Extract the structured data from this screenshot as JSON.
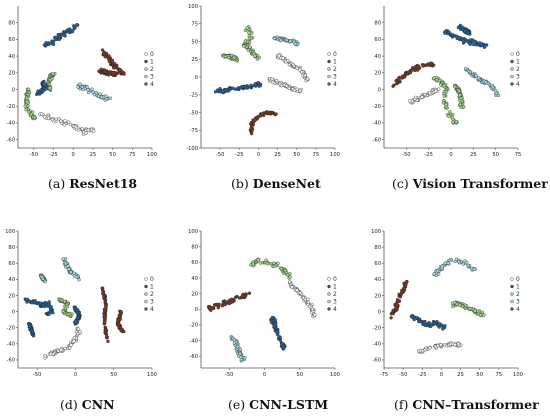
{
  "colors": {
    "class_0": "#f4f4f4",
    "class_1": "#7b3b2a",
    "class_2": "#a8d890",
    "class_3": "#a9dde6",
    "class_4": "#2b6494",
    "edge": "#222222"
  },
  "chart_data": [
    {
      "type": "scatter",
      "caption_tag": "(a)",
      "caption_name": "ResNet18",
      "xlim": [
        -70,
        100
      ],
      "ylim": [
        -70,
        100
      ],
      "xticks": [
        -50,
        -25,
        0,
        25,
        50,
        75,
        100
      ],
      "yticks": [
        -60,
        -40,
        -20,
        0,
        20,
        40,
        60,
        80
      ],
      "legend": [
        "0",
        "1",
        "2",
        "3",
        "4"
      ],
      "legend_position": "right",
      "clusters": [
        {
          "class": 4,
          "path": [
            [
              -35,
              52
            ],
            [
              -25,
              58
            ],
            [
              -15,
              65
            ],
            [
              -5,
              70
            ],
            [
              5,
              76
            ]
          ],
          "spread": 4
        },
        {
          "class": 1,
          "path": [
            [
              35,
              48
            ],
            [
              45,
              38
            ],
            [
              50,
              30
            ],
            [
              58,
              24
            ],
            [
              65,
              18
            ]
          ],
          "spread": 3
        },
        {
          "class": 1,
          "path": [
            [
              35,
              22
            ],
            [
              45,
              20
            ],
            [
              55,
              18
            ]
          ],
          "spread": 3
        },
        {
          "class": 2,
          "path": [
            [
              -25,
              20
            ],
            [
              -32,
              10
            ],
            [
              -30,
              0
            ]
          ],
          "spread": 3
        },
        {
          "class": 4,
          "path": [
            [
              -40,
              10
            ],
            [
              -35,
              2
            ],
            [
              -45,
              -5
            ]
          ],
          "spread": 3
        },
        {
          "class": 2,
          "path": [
            [
              -55,
              0
            ],
            [
              -60,
              -10
            ],
            [
              -58,
              -25
            ],
            [
              -48,
              -35
            ]
          ],
          "spread": 4
        },
        {
          "class": 3,
          "path": [
            [
              5,
              5
            ],
            [
              15,
              2
            ],
            [
              25,
              -3
            ],
            [
              35,
              -8
            ],
            [
              45,
              -12
            ]
          ],
          "spread": 4
        },
        {
          "class": 0,
          "path": [
            [
              -40,
              -30
            ],
            [
              -25,
              -35
            ],
            [
              -10,
              -40
            ],
            [
              5,
              -45
            ],
            [
              15,
              -50
            ],
            [
              25,
              -48
            ]
          ],
          "spread": 4
        }
      ]
    },
    {
      "type": "scatter",
      "caption_tag": "(b)",
      "caption_name": "DenseNet",
      "xlim": [
        -75,
        100
      ],
      "ylim": [
        -100,
        100
      ],
      "xticks": [
        -50,
        -25,
        0,
        25,
        50,
        75,
        100
      ],
      "yticks": [
        -100,
        -75,
        -50,
        -25,
        0,
        25,
        50,
        75,
        100
      ],
      "legend": [
        "0",
        "1",
        "2",
        "3",
        "4"
      ],
      "legend_position": "right",
      "clusters": [
        {
          "class": 2,
          "path": [
            [
              -15,
              70
            ],
            [
              -10,
              55
            ],
            [
              -18,
              45
            ],
            [
              -8,
              35
            ],
            [
              0,
              25
            ]
          ],
          "spread": 5
        },
        {
          "class": 2,
          "path": [
            [
              -45,
              30
            ],
            [
              -35,
              28
            ],
            [
              -28,
              25
            ]
          ],
          "spread": 4
        },
        {
          "class": 3,
          "path": [
            [
              20,
              55
            ],
            [
              35,
              52
            ],
            [
              50,
              48
            ]
          ],
          "spread": 3
        },
        {
          "class": 0,
          "path": [
            [
              25,
              30
            ],
            [
              40,
              20
            ],
            [
              55,
              10
            ],
            [
              65,
              -5
            ]
          ],
          "spread": 4
        },
        {
          "class": 0,
          "path": [
            [
              10,
              0
            ],
            [
              25,
              -8
            ],
            [
              40,
              -15
            ],
            [
              55,
              -20
            ]
          ],
          "spread": 4
        },
        {
          "class": 4,
          "path": [
            [
              -55,
              -20
            ],
            [
              -40,
              -18
            ],
            [
              -25,
              -15
            ],
            [
              -10,
              -12
            ],
            [
              5,
              -10
            ]
          ],
          "spread": 4
        },
        {
          "class": 1,
          "path": [
            [
              -10,
              -80
            ],
            [
              -8,
              -65
            ],
            [
              0,
              -55
            ],
            [
              12,
              -50
            ],
            [
              22,
              -52
            ]
          ],
          "spread": 3
        }
      ]
    },
    {
      "type": "scatter",
      "caption_tag": "(c)",
      "caption_name": "Vision Transformer",
      "xlim": [
        -75,
        75
      ],
      "ylim": [
        -70,
        100
      ],
      "xticks": [
        -50,
        -25,
        0,
        25,
        50,
        75
      ],
      "yticks": [
        -60,
        -40,
        -20,
        0,
        20,
        40,
        60,
        80
      ],
      "legend": [
        "0",
        "1",
        "2",
        "3",
        "4"
      ],
      "legend_position": "right",
      "clusters": [
        {
          "class": 4,
          "path": [
            [
              -5,
              70
            ],
            [
              5,
              62
            ],
            [
              18,
              58
            ],
            [
              30,
              55
            ],
            [
              40,
              52
            ]
          ],
          "spread": 4
        },
        {
          "class": 4,
          "path": [
            [
              10,
              75
            ],
            [
              20,
              68
            ]
          ],
          "spread": 3
        },
        {
          "class": 1,
          "path": [
            [
              -65,
              5
            ],
            [
              -55,
              15
            ],
            [
              -45,
              22
            ],
            [
              -35,
              28
            ],
            [
              -20,
              30
            ]
          ],
          "spread": 4
        },
        {
          "class": 3,
          "path": [
            [
              15,
              25
            ],
            [
              25,
              18
            ],
            [
              35,
              10
            ],
            [
              45,
              5
            ],
            [
              55,
              -10
            ]
          ],
          "spread": 3
        },
        {
          "class": 0,
          "path": [
            [
              -45,
              -15
            ],
            [
              -35,
              -10
            ],
            [
              -25,
              -5
            ],
            [
              -15,
              0
            ]
          ],
          "spread": 3
        },
        {
          "class": 2,
          "path": [
            [
              -20,
              15
            ],
            [
              -10,
              8
            ],
            [
              -5,
              0
            ],
            [
              -8,
              -15
            ],
            [
              -2,
              -30
            ],
            [
              5,
              -40
            ]
          ],
          "spread": 4
        },
        {
          "class": 2,
          "path": [
            [
              5,
              5
            ],
            [
              10,
              -5
            ],
            [
              12,
              -20
            ]
          ],
          "spread": 3
        }
      ]
    },
    {
      "type": "scatter",
      "caption_tag": "(d)",
      "caption_name": "CNN",
      "xlim": [
        -75,
        100
      ],
      "ylim": [
        -70,
        100
      ],
      "xticks": [
        -50,
        0,
        50,
        100
      ],
      "yticks": [
        -60,
        -40,
        -20,
        0,
        20,
        40,
        60,
        80,
        100
      ],
      "legend": [
        "0",
        "1",
        "2",
        "3",
        "4"
      ],
      "legend_position": "right",
      "clusters": [
        {
          "class": 3,
          "path": [
            [
              -15,
              65
            ],
            [
              -10,
              55
            ],
            [
              -5,
              48
            ],
            [
              5,
              42
            ]
          ],
          "spread": 3
        },
        {
          "class": 3,
          "path": [
            [
              -45,
              45
            ],
            [
              -40,
              38
            ]
          ],
          "spread": 2
        },
        {
          "class": 4,
          "path": [
            [
              -65,
              15
            ],
            [
              -55,
              12
            ],
            [
              -45,
              8
            ],
            [
              -35,
              10
            ],
            [
              -30,
              0
            ],
            [
              -40,
              -5
            ]
          ],
          "spread": 4
        },
        {
          "class": 4,
          "path": [
            [
              -60,
              -15
            ],
            [
              -55,
              -30
            ]
          ],
          "spread": 2
        },
        {
          "class": 2,
          "path": [
            [
              -20,
              15
            ],
            [
              -10,
              10
            ],
            [
              -15,
              0
            ],
            [
              -5,
              -5
            ]
          ],
          "spread": 3
        },
        {
          "class": 4,
          "path": [
            [
              0,
              5
            ],
            [
              5,
              -5
            ],
            [
              0,
              -15
            ]
          ],
          "spread": 3
        },
        {
          "class": 0,
          "path": [
            [
              -40,
              -55
            ],
            [
              -25,
              -50
            ],
            [
              -10,
              -45
            ],
            [
              0,
              -35
            ],
            [
              5,
              -20
            ]
          ],
          "spread": 4
        },
        {
          "class": 1,
          "path": [
            [
              35,
              30
            ],
            [
              40,
              10
            ],
            [
              38,
              -10
            ],
            [
              42,
              -40
            ]
          ],
          "spread": 2
        },
        {
          "class": 1,
          "path": [
            [
              60,
              0
            ],
            [
              55,
              -15
            ],
            [
              62,
              -25
            ]
          ],
          "spread": 2
        }
      ]
    },
    {
      "type": "scatter",
      "caption_tag": "(e)",
      "caption_name": "CNN-LSTM",
      "xlim": [
        -90,
        100
      ],
      "ylim": [
        -75,
        100
      ],
      "xticks": [
        -50,
        0,
        50,
        100
      ],
      "yticks": [
        -60,
        -40,
        -20,
        0,
        20,
        40,
        60,
        80,
        100
      ],
      "legend": [
        "0",
        "1",
        "2",
        "3",
        "4"
      ],
      "legend_position": "right",
      "clusters": [
        {
          "class": 2,
          "path": [
            [
              -20,
              55
            ],
            [
              -10,
              62
            ],
            [
              5,
              60
            ],
            [
              20,
              55
            ],
            [
              30,
              48
            ],
            [
              38,
              40
            ]
          ],
          "spread": 4
        },
        {
          "class": 1,
          "path": [
            [
              -80,
              0
            ],
            [
              -65,
              5
            ],
            [
              -50,
              10
            ],
            [
              -35,
              15
            ],
            [
              -20,
              20
            ]
          ],
          "spread": 4
        },
        {
          "class": 0,
          "path": [
            [
              35,
              35
            ],
            [
              45,
              25
            ],
            [
              55,
              15
            ],
            [
              65,
              5
            ],
            [
              72,
              -10
            ]
          ],
          "spread": 4
        },
        {
          "class": 4,
          "path": [
            [
              10,
              -10
            ],
            [
              15,
              -20
            ],
            [
              20,
              -35
            ],
            [
              28,
              -50
            ]
          ],
          "spread": 4
        },
        {
          "class": 3,
          "path": [
            [
              -45,
              -35
            ],
            [
              -40,
              -45
            ],
            [
              -35,
              -55
            ],
            [
              -30,
              -65
            ]
          ],
          "spread": 4
        }
      ]
    },
    {
      "type": "scatter",
      "caption_tag": "(f)",
      "caption_name": "CNN–Transformer",
      "xlim": [
        -75,
        100
      ],
      "ylim": [
        -70,
        100
      ],
      "xticks": [
        -75,
        -50,
        -25,
        0,
        25,
        50,
        75,
        100
      ],
      "yticks": [
        -60,
        -40,
        -20,
        0,
        20,
        40,
        60,
        80,
        100
      ],
      "legend": [
        "0",
        "1",
        "2",
        "3",
        "4"
      ],
      "legend_position": "right",
      "clusters": [
        {
          "class": 3,
          "path": [
            [
              -10,
              45
            ],
            [
              0,
              55
            ],
            [
              15,
              65
            ],
            [
              30,
              60
            ],
            [
              45,
              50
            ]
          ],
          "spread": 4
        },
        {
          "class": 1,
          "path": [
            [
              -65,
              -5
            ],
            [
              -60,
              5
            ],
            [
              -55,
              15
            ],
            [
              -50,
              28
            ],
            [
              -45,
              38
            ]
          ],
          "spread": 4
        },
        {
          "class": 2,
          "path": [
            [
              15,
              10
            ],
            [
              25,
              8
            ],
            [
              35,
              5
            ],
            [
              45,
              0
            ],
            [
              55,
              -5
            ]
          ],
          "spread": 4
        },
        {
          "class": 4,
          "path": [
            [
              -40,
              -5
            ],
            [
              -30,
              -10
            ],
            [
              -20,
              -15
            ],
            [
              -5,
              -15
            ],
            [
              5,
              -20
            ]
          ],
          "spread": 4
        },
        {
          "class": 0,
          "path": [
            [
              -30,
              -50
            ],
            [
              -15,
              -45
            ],
            [
              0,
              -42
            ],
            [
              15,
              -40
            ],
            [
              25,
              -42
            ]
          ],
          "spread": 3
        }
      ]
    }
  ]
}
